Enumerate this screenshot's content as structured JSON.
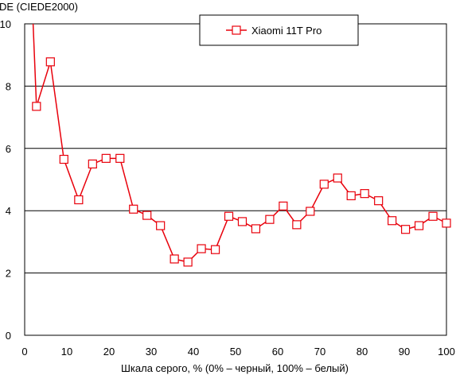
{
  "chart_data": {
    "type": "line",
    "title": "",
    "ylabel": "DE (CIEDE2000)",
    "xlabel": "Шкала серого, % (0% – черный, 100% – белый)",
    "xlim": [
      0,
      100
    ],
    "ylim": [
      0,
      10
    ],
    "xticks": [
      0,
      10,
      20,
      30,
      40,
      50,
      60,
      70,
      80,
      90,
      100
    ],
    "yticks": [
      0,
      2,
      4,
      6,
      8,
      10
    ],
    "grid": "horizontal",
    "legend_position": "top-center",
    "series": [
      {
        "name": "Xiaomi 11T Pro",
        "color": "#e8000b",
        "marker": "open-square",
        "line_start": {
          "x": 2.0,
          "y": 10.2
        },
        "x": [
          2.8,
          6.1,
          9.3,
          12.8,
          16.1,
          19.3,
          22.6,
          25.8,
          29.0,
          32.2,
          35.5,
          38.7,
          41.9,
          45.2,
          48.4,
          51.6,
          54.8,
          58.1,
          61.3,
          64.5,
          67.7,
          71.0,
          74.2,
          77.4,
          80.6,
          83.9,
          87.1,
          90.3,
          93.5,
          96.8,
          100.0
        ],
        "y": [
          7.35,
          8.78,
          5.65,
          4.35,
          5.5,
          5.68,
          5.68,
          4.05,
          3.85,
          3.52,
          2.45,
          2.35,
          2.78,
          2.75,
          3.82,
          3.65,
          3.42,
          3.72,
          4.15,
          3.55,
          3.98,
          4.85,
          5.05,
          4.48,
          4.55,
          4.32,
          3.68,
          3.4,
          3.52,
          3.82,
          3.6
        ]
      }
    ]
  }
}
